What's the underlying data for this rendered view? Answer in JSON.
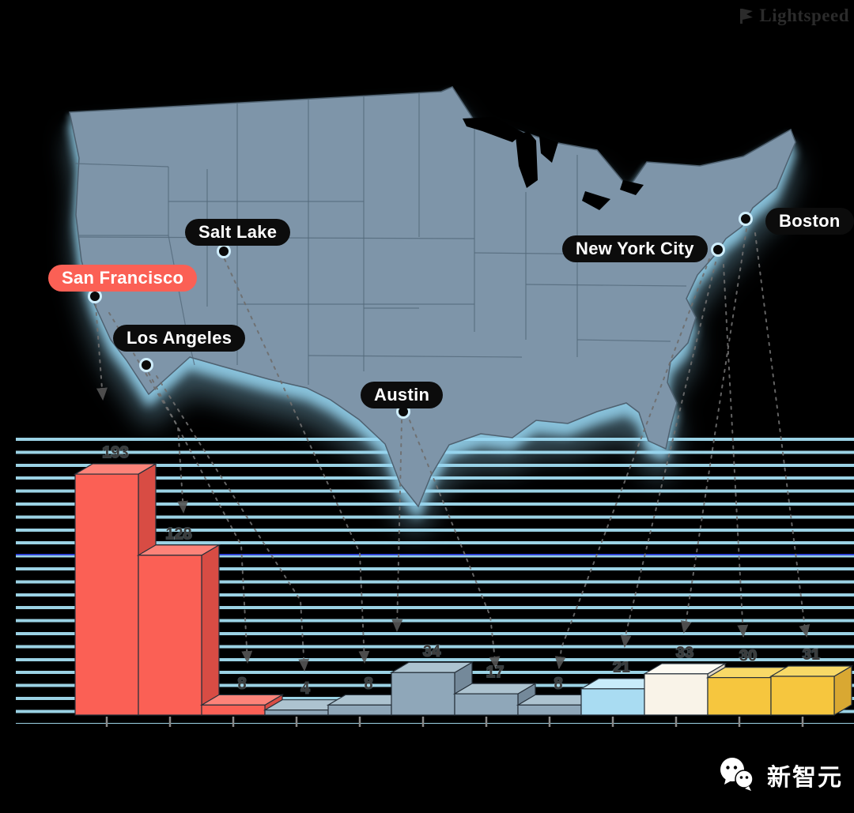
{
  "header": {
    "logo": "Lightspeed"
  },
  "map": {
    "highlight_color": "#fb6055",
    "cities": [
      {
        "id": "san-francisco",
        "label": "San Francisco",
        "highlighted": true
      },
      {
        "id": "salt-lake",
        "label": "Salt Lake",
        "highlighted": false
      },
      {
        "id": "los-angeles",
        "label": "Los Angeles",
        "highlighted": false
      },
      {
        "id": "austin",
        "label": "Austin",
        "highlighted": false
      },
      {
        "id": "new-york-city",
        "label": "New York City",
        "highlighted": false
      },
      {
        "id": "boston",
        "label": "Boston",
        "highlighted": false
      }
    ]
  },
  "chart_data": {
    "type": "bar",
    "style": "3d-extruded",
    "values": [
      193,
      128,
      8,
      4,
      8,
      34,
      17,
      8,
      21,
      33,
      30,
      31
    ],
    "bar_colors": [
      "red",
      "red",
      "red",
      "steel",
      "steel",
      "steel",
      "steel",
      "steel",
      "lightblue",
      "cream",
      "yellow",
      "yellow"
    ],
    "palette": {
      "red": {
        "front": "#fb6055",
        "top": "#fd8379",
        "side": "#d84c44"
      },
      "steel": {
        "front": "#8fa7b9",
        "top": "#adc3d0",
        "side": "#74899a"
      },
      "lightblue": {
        "front": "#a9dcf2",
        "top": "#c9ebf9",
        "side": "#8fc4de"
      },
      "cream": {
        "front": "#f9f3e8",
        "top": "#fdfaf3",
        "side": "#e0d6c4"
      },
      "yellow": {
        "front": "#f6c63e",
        "top": "#f8d967",
        "side": "#d9a832"
      }
    },
    "highlight_city": "San Francisco",
    "highlight_value": 193,
    "ylim": [
      0,
      200
    ],
    "grid": "horizontal cyan stripes",
    "xlabel": "",
    "ylabel": ""
  },
  "footer": {
    "brand": "新智元"
  }
}
